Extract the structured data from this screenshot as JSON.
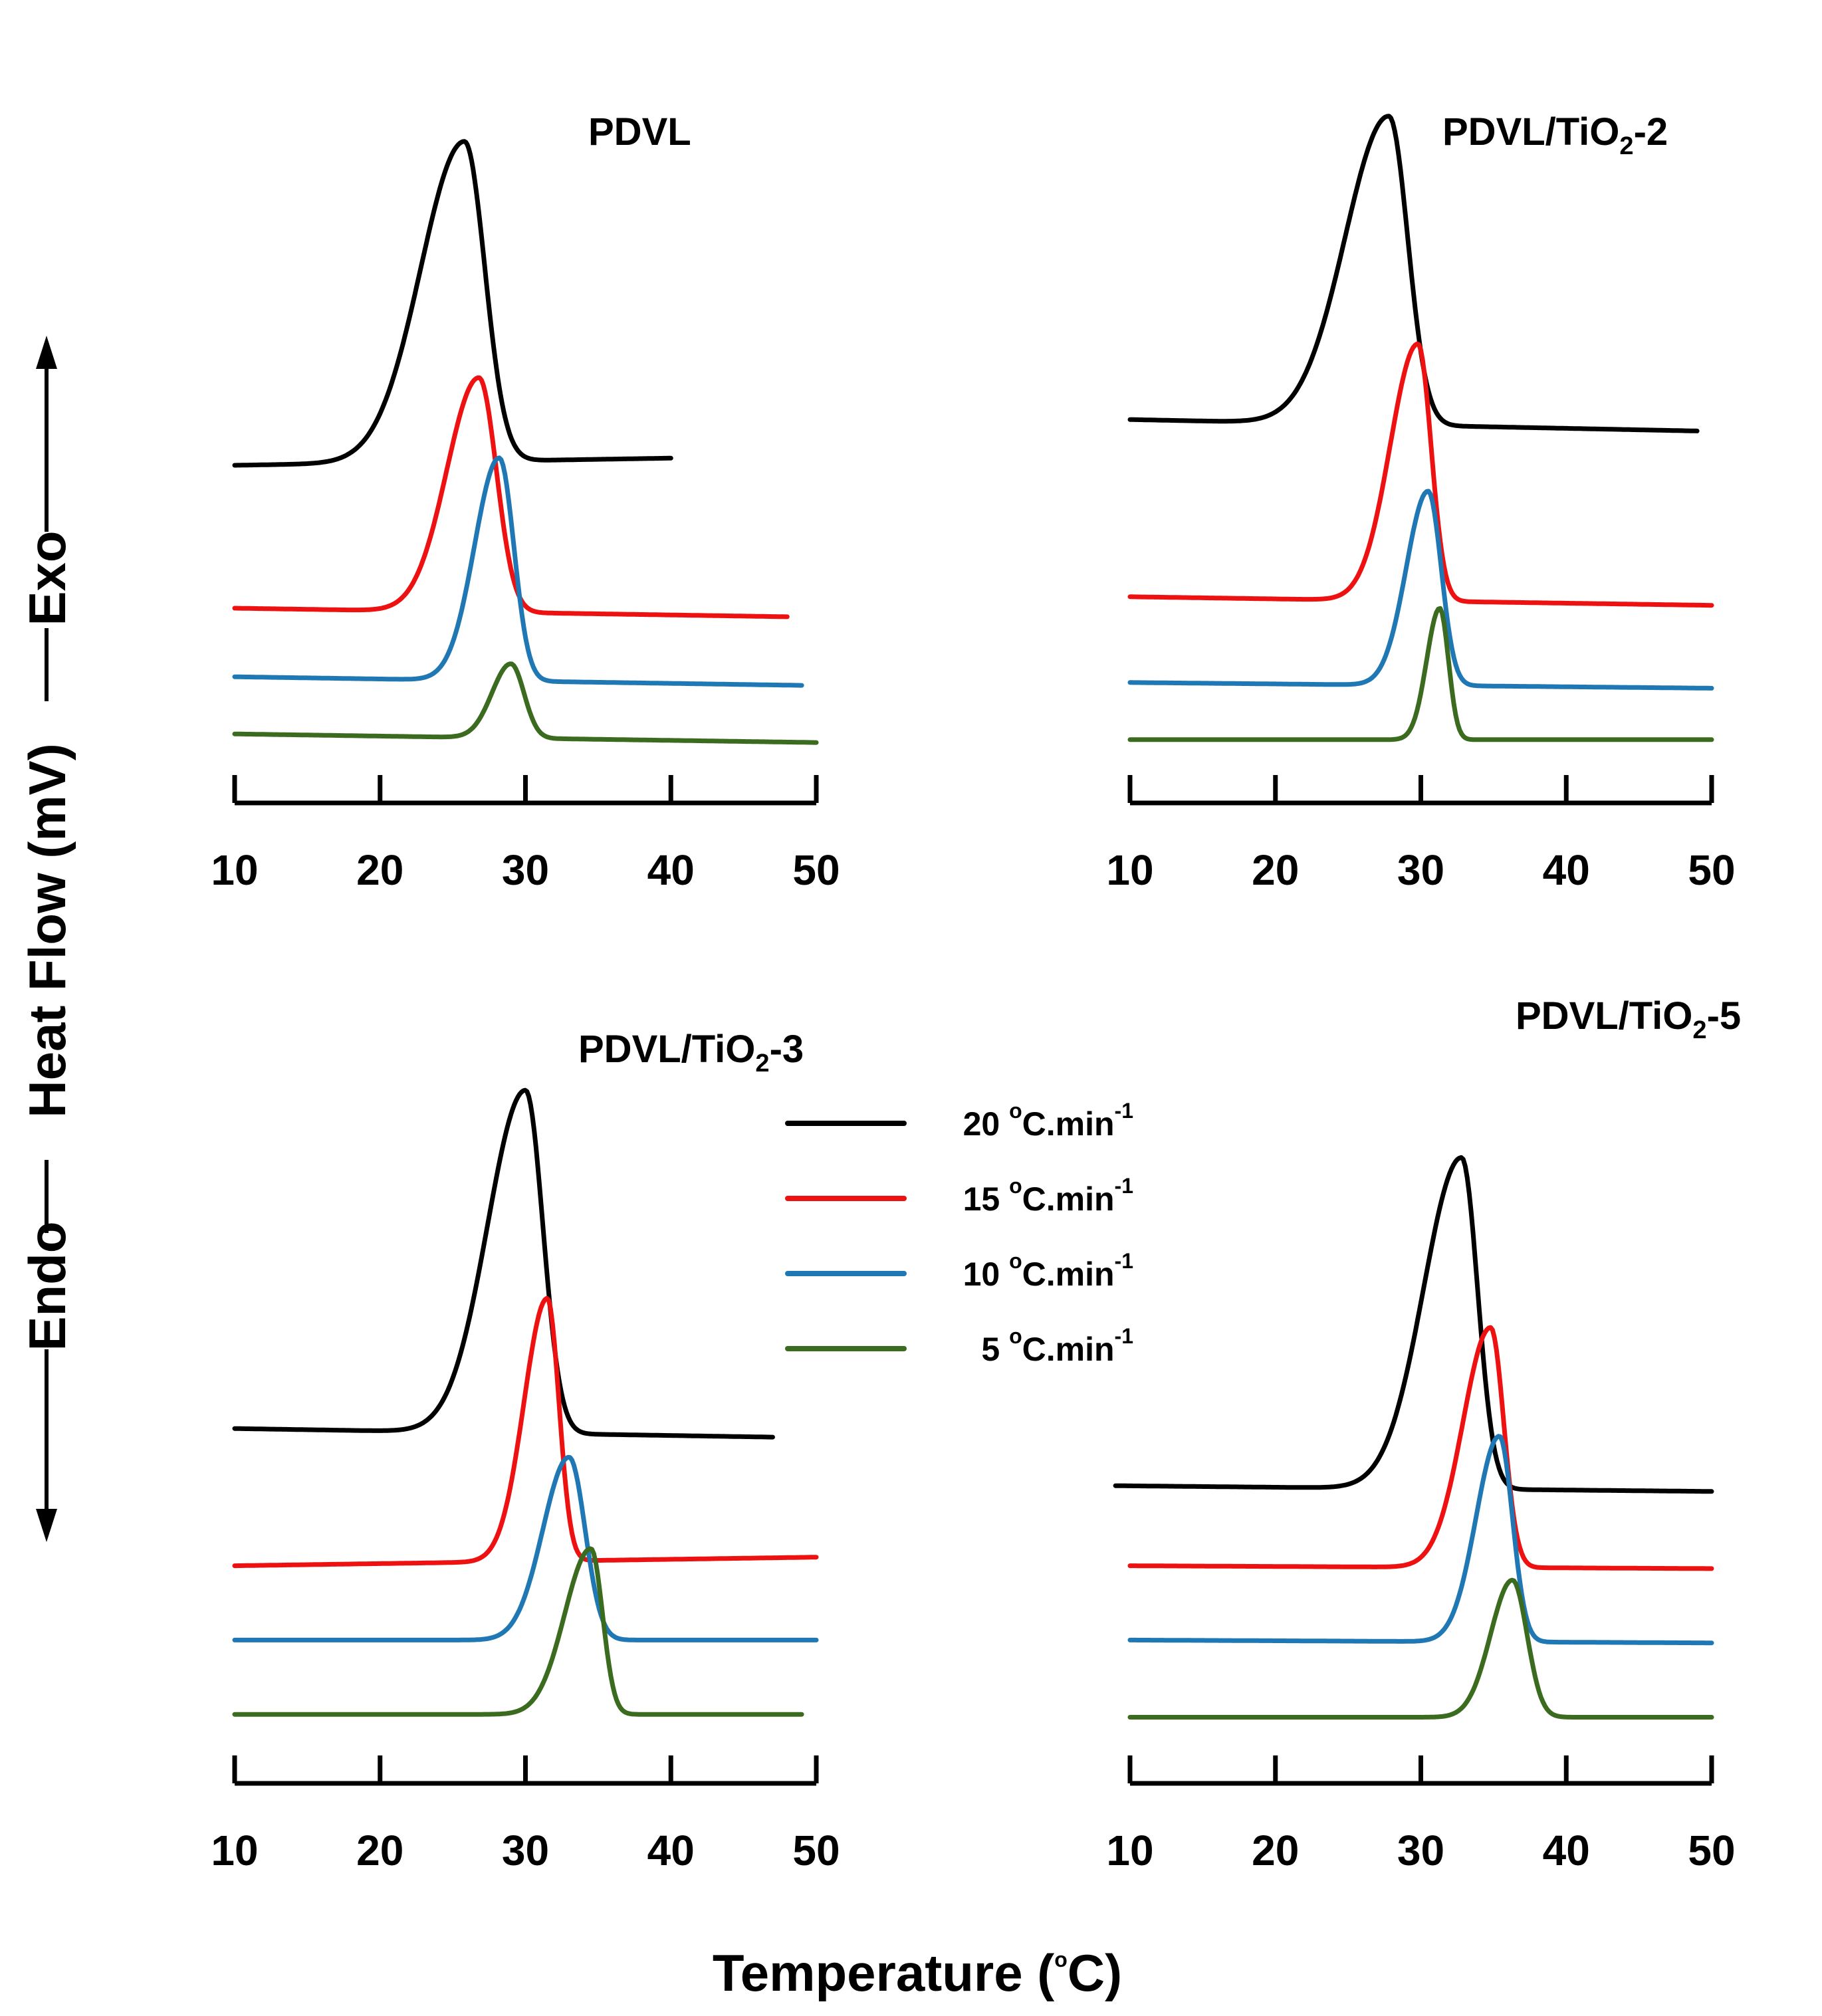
{
  "chart_data": {
    "type": "line",
    "xlabel": "Temperature (°C)",
    "xlabel_prefix": "Temperature (",
    "xlabel_sup": "o",
    "xlabel_suffix": "C)",
    "ylabel": "Endo — Heat Flow (mV) — Exo",
    "ylabel_endo": "Endo",
    "ylabel_main": "Heat Flow (mV)",
    "ylabel_exo": "Exo",
    "xlim": [
      10,
      50
    ],
    "xticks": [
      10,
      20,
      30,
      40,
      50
    ],
    "legend": {
      "location": "center",
      "entries": [
        {
          "label": "20 °C.min⁻¹",
          "value": "20",
          "unit": "C.min",
          "sup1": "o",
          "sup2": "-1",
          "color": "#000000"
        },
        {
          "label": "15 °C.min⁻¹",
          "value": "15",
          "unit": "C.min",
          "sup1": "o",
          "sup2": "-1",
          "color": "#ee1111"
        },
        {
          "label": "10 °C.min⁻¹",
          "value": "10",
          "unit": "C.min",
          "sup1": "o",
          "sup2": "-1",
          "color": "#1f78b4"
        },
        {
          "label": "5 °C.min⁻¹",
          "value": "5",
          "unit": "C.min",
          "sup1": "o",
          "sup2": "-1",
          "color": "#3a6b1e"
        }
      ]
    },
    "panels": [
      {
        "title": "PDVL",
        "title_main": "PDVL",
        "title_sub": "",
        "title_suffix": "",
        "series": [
          {
            "rate": 20,
            "color": "#000000",
            "x_range": [
              10,
              40
            ],
            "peak_T": 25.8,
            "sigma_left": 3.0,
            "sigma_right": 1.4,
            "height": 11.2,
            "baseline_start": 0.0,
            "baseline_end": 0.25,
            "offset": 10.0
          },
          {
            "rate": 15,
            "color": "#ee1111",
            "x_range": [
              10,
              48
            ],
            "peak_T": 26.8,
            "sigma_left": 2.2,
            "sigma_right": 1.2,
            "height": 8.2,
            "baseline_start": 0.0,
            "baseline_end": -0.3,
            "offset": 5.0
          },
          {
            "rate": 10,
            "color": "#1f78b4",
            "x_range": [
              10,
              49
            ],
            "peak_T": 28.2,
            "sigma_left": 1.7,
            "sigma_right": 1.0,
            "height": 7.8,
            "baseline_start": 0.0,
            "baseline_end": -0.3,
            "offset": 2.6
          },
          {
            "rate": 5,
            "color": "#3a6b1e",
            "x_range": [
              10,
              50
            ],
            "peak_T": 29.0,
            "sigma_left": 1.3,
            "sigma_right": 0.9,
            "height": 2.6,
            "baseline_start": 0.0,
            "baseline_end": -0.3,
            "offset": 0.6
          }
        ]
      },
      {
        "title": "PDVL/TiO₂-2",
        "title_main": "PDVL/TiO",
        "title_sub": "2",
        "title_suffix": "-2",
        "series": [
          {
            "rate": 20,
            "color": "#000000",
            "x_range": [
              10,
              49
            ],
            "peak_T": 27.8,
            "sigma_left": 3.0,
            "sigma_right": 1.3,
            "height": 10.8,
            "baseline_start": 0.0,
            "baseline_end": -0.4,
            "offset": 11.6
          },
          {
            "rate": 15,
            "color": "#ee1111",
            "x_range": [
              10,
              50
            ],
            "peak_T": 29.8,
            "sigma_left": 1.9,
            "sigma_right": 0.9,
            "height": 9.0,
            "baseline_start": 0.0,
            "baseline_end": -0.3,
            "offset": 5.4
          },
          {
            "rate": 10,
            "color": "#1f78b4",
            "x_range": [
              10,
              50
            ],
            "peak_T": 30.5,
            "sigma_left": 1.5,
            "sigma_right": 0.9,
            "height": 6.8,
            "baseline_start": 0.0,
            "baseline_end": -0.2,
            "offset": 2.4
          },
          {
            "rate": 5,
            "color": "#3a6b1e",
            "x_range": [
              10,
              50
            ],
            "peak_T": 31.3,
            "sigma_left": 0.9,
            "sigma_right": 0.6,
            "height": 4.6,
            "baseline_start": 0.0,
            "baseline_end": 0.0,
            "offset": 0.4
          }
        ]
      },
      {
        "title": "PDVL/TiO₂-3",
        "title_main": "PDVL/TiO",
        "title_sub": "2",
        "title_suffix": "-3",
        "series": [
          {
            "rate": 20,
            "color": "#000000",
            "x_range": [
              10,
              47
            ],
            "peak_T": 30.0,
            "sigma_left": 2.6,
            "sigma_right": 1.2,
            "height": 12.0,
            "baseline_start": 0.0,
            "baseline_end": -0.3,
            "offset": 10.6
          },
          {
            "rate": 15,
            "color": "#ee1111",
            "x_range": [
              10,
              50
            ],
            "peak_T": 31.5,
            "sigma_left": 1.6,
            "sigma_right": 0.8,
            "height": 9.2,
            "baseline_start": 0.0,
            "baseline_end": 0.3,
            "offset": 5.8
          },
          {
            "rate": 10,
            "color": "#1f78b4",
            "x_range": [
              10,
              50
            ],
            "peak_T": 33.0,
            "sigma_left": 1.8,
            "sigma_right": 1.1,
            "height": 6.4,
            "baseline_start": 0.0,
            "baseline_end": 0.0,
            "offset": 3.2
          },
          {
            "rate": 5,
            "color": "#3a6b1e",
            "x_range": [
              10,
              49
            ],
            "peak_T": 34.5,
            "sigma_left": 1.8,
            "sigma_right": 0.8,
            "height": 5.8,
            "baseline_start": 0.0,
            "baseline_end": 0.0,
            "offset": 0.6
          }
        ]
      },
      {
        "title": "PDVL/TiO₂-5",
        "title_main": "PDVL/TiO",
        "title_sub": "2",
        "title_suffix": "-5",
        "series": [
          {
            "rate": 20,
            "color": "#000000",
            "x_range": [
              9,
              50
            ],
            "peak_T": 32.8,
            "sigma_left": 2.6,
            "sigma_right": 1.1,
            "height": 11.6,
            "baseline_start": 0.0,
            "baseline_end": -0.2,
            "offset": 8.6
          },
          {
            "rate": 15,
            "color": "#ee1111",
            "x_range": [
              10,
              50
            ],
            "peak_T": 34.8,
            "sigma_left": 1.9,
            "sigma_right": 0.9,
            "height": 8.4,
            "baseline_start": 0.0,
            "baseline_end": -0.1,
            "offset": 5.8
          },
          {
            "rate": 10,
            "color": "#1f78b4",
            "x_range": [
              10,
              50
            ],
            "peak_T": 35.4,
            "sigma_left": 1.6,
            "sigma_right": 0.9,
            "height": 7.2,
            "baseline_start": 0.0,
            "baseline_end": -0.1,
            "offset": 3.2
          },
          {
            "rate": 5,
            "color": "#3a6b1e",
            "x_range": [
              10,
              50
            ],
            "peak_T": 36.3,
            "sigma_left": 1.5,
            "sigma_right": 1.0,
            "height": 4.8,
            "baseline_start": 0.0,
            "baseline_end": 0.0,
            "offset": 0.5
          }
        ]
      }
    ]
  }
}
